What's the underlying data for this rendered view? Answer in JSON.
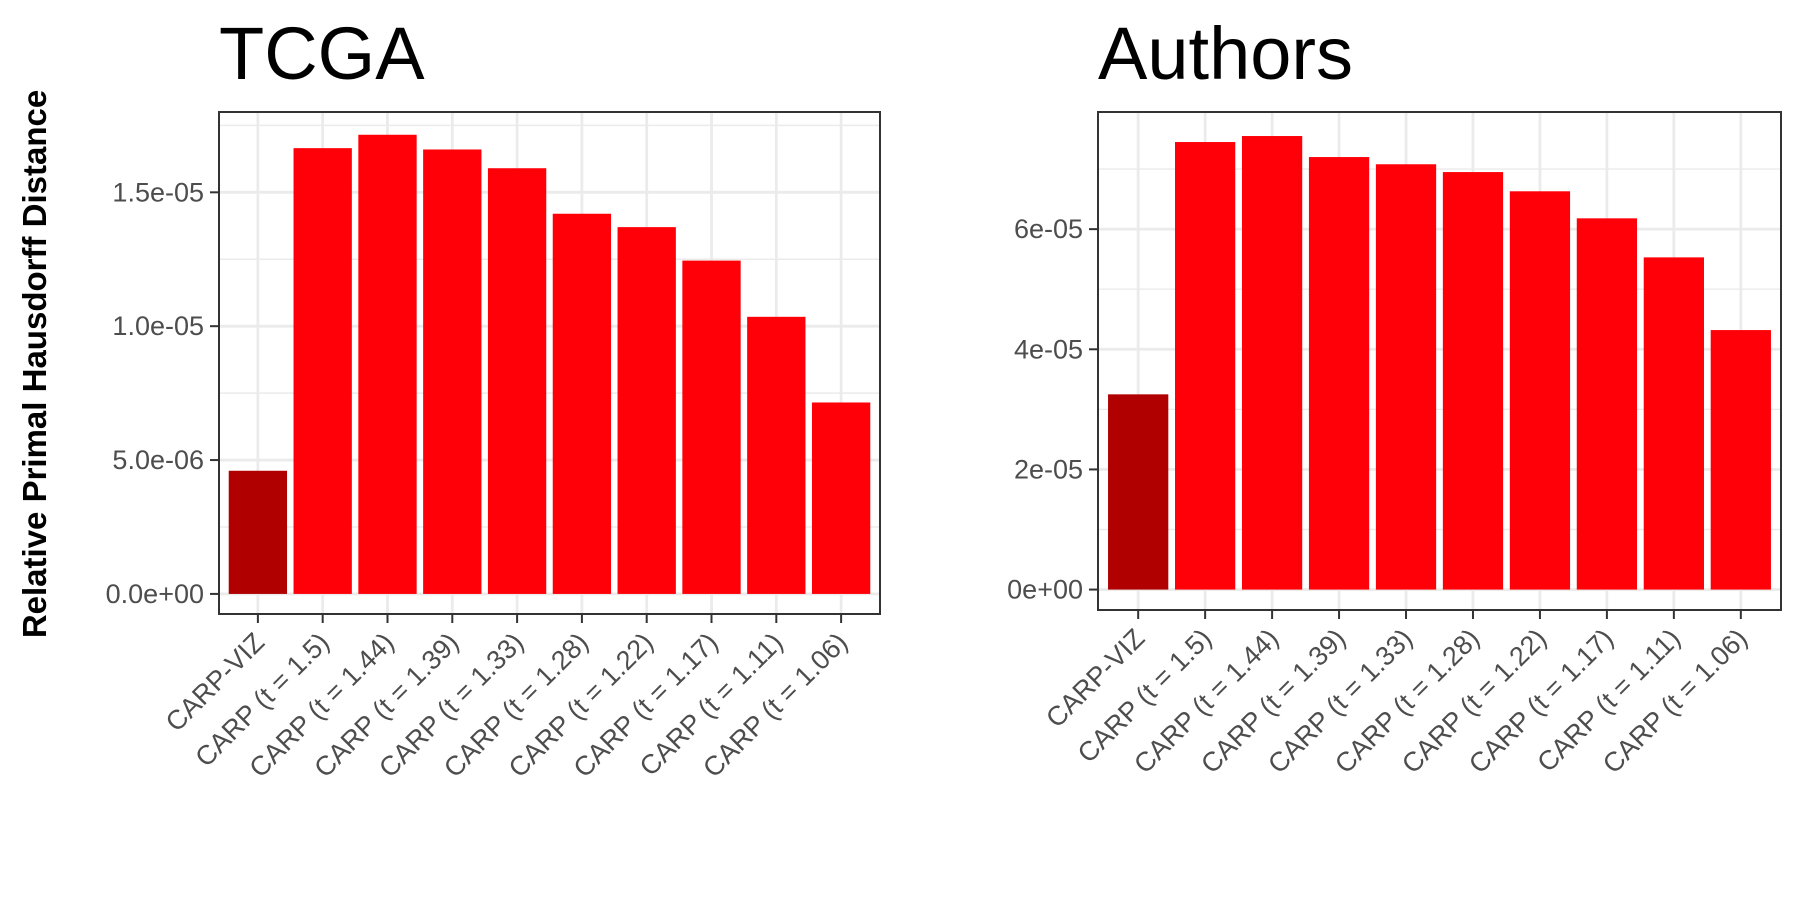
{
  "figure": {
    "ylabel": "Relative Primal Hausdorff Distance"
  },
  "chart_data": [
    {
      "type": "bar",
      "title": "TCGA",
      "xlabel": "",
      "ylabel": "Relative Primal Hausdorff Distance",
      "categories": [
        "CARP-VIZ",
        "CARP (t = 1.5)",
        "CARP (t = 1.44)",
        "CARP (t = 1.39)",
        "CARP (t = 1.33)",
        "CARP (t = 1.28)",
        "CARP (t = 1.22)",
        "CARP (t = 1.17)",
        "CARP (t = 1.11)",
        "CARP (t = 1.06)"
      ],
      "values": [
        4.6e-06,
        1.665e-05,
        1.715e-05,
        1.66e-05,
        1.59e-05,
        1.42e-05,
        1.37e-05,
        1.245e-05,
        1.035e-05,
        7.15e-06
      ],
      "ylim": [
        -7.5e-07,
        1.8e-05
      ],
      "yticks": [
        0,
        5e-06,
        1e-05,
        1.5e-05
      ],
      "yticklabels": [
        "0.0e+00",
        "5.0e-06",
        "1.0e-05",
        "1.5e-05"
      ],
      "grid": true,
      "colors": {
        "highlight": "#b00000",
        "bar": "#ff0008",
        "grid": "#ebebeb",
        "panel_border": "#333333"
      }
    },
    {
      "type": "bar",
      "title": "Authors",
      "xlabel": "",
      "ylabel": "",
      "categories": [
        "CARP-VIZ",
        "CARP (t = 1.5)",
        "CARP (t = 1.44)",
        "CARP (t = 1.39)",
        "CARP (t = 1.33)",
        "CARP (t = 1.28)",
        "CARP (t = 1.22)",
        "CARP (t = 1.17)",
        "CARP (t = 1.11)",
        "CARP (t = 1.06)"
      ],
      "values": [
        3.25e-05,
        7.45e-05,
        7.55e-05,
        7.2e-05,
        7.08e-05,
        6.95e-05,
        6.63e-05,
        6.18e-05,
        5.53e-05,
        4.32e-05
      ],
      "ylim": [
        -3.4e-06,
        7.95e-05
      ],
      "yticks": [
        0,
        2e-05,
        4e-05,
        6e-05
      ],
      "yticklabels": [
        "0e+00",
        "2e-05",
        "4e-05",
        "6e-05"
      ],
      "grid": true,
      "colors": {
        "highlight": "#b00000",
        "bar": "#ff0008",
        "grid": "#ebebeb",
        "panel_border": "#333333"
      }
    }
  ]
}
